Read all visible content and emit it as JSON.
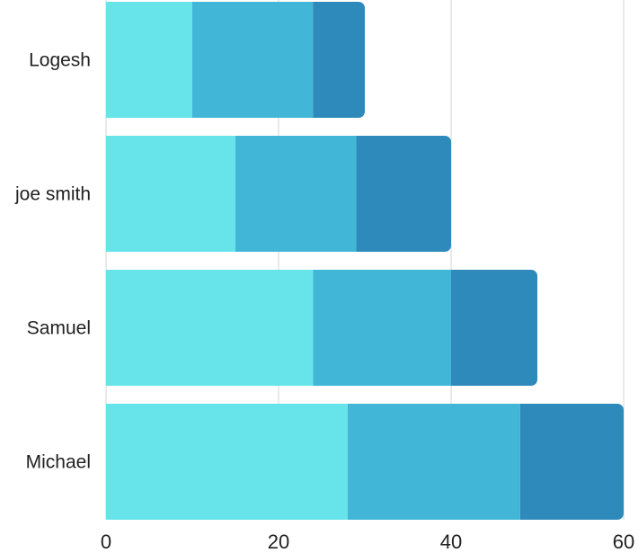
{
  "chart_data": {
    "type": "bar",
    "orientation": "horizontal",
    "stacked": true,
    "categories": [
      "Logesh",
      "joe smith",
      "Samuel",
      "Michael"
    ],
    "series": [
      {
        "values": [
          10,
          15,
          24,
          28
        ],
        "color": "#67e4ea"
      },
      {
        "values": [
          14,
          14,
          16,
          20
        ],
        "color": "#42b6d6"
      },
      {
        "values": [
          6,
          11,
          10,
          12
        ],
        "color": "#2e8aba"
      }
    ],
    "xlim": [
      0,
      60
    ],
    "x_ticks": [
      "0",
      "20",
      "40",
      "60"
    ],
    "grid": true,
    "legend": "none",
    "title": "",
    "xlabel": "",
    "ylabel": ""
  }
}
